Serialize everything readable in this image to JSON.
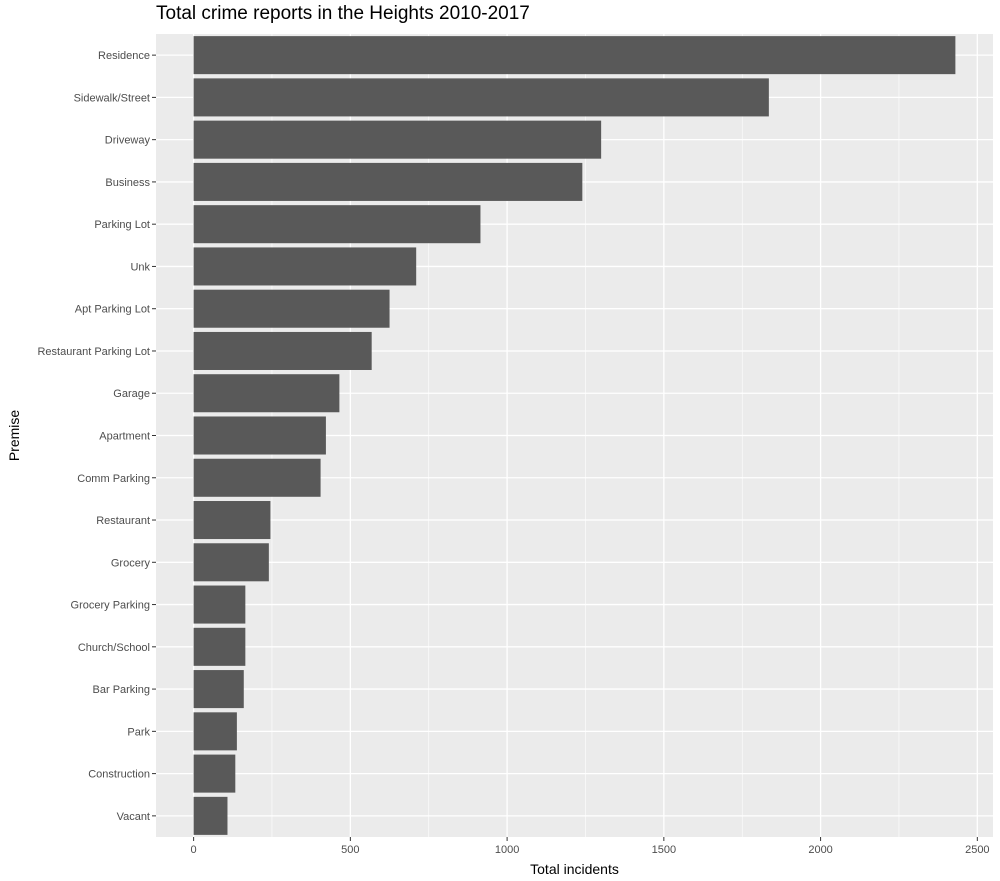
{
  "chart_data": {
    "type": "bar",
    "orientation": "horizontal",
    "title": "Total crime reports in the Heights 2010-2017",
    "xlabel": "Total incidents",
    "ylabel": "Premise",
    "categories": [
      "Residence",
      "Sidewalk/Street",
      "Driveway",
      "Business",
      "Parking Lot",
      "Unk",
      "Apt Parking Lot",
      "Restaurant Parking Lot",
      "Garage",
      "Apartment",
      "Comm Parking",
      "Restaurant",
      "Grocery",
      "Grocery Parking",
      "Church/School",
      "Bar Parking",
      "Park",
      "Construction",
      "Vacant"
    ],
    "values": [
      2430,
      1835,
      1300,
      1240,
      915,
      710,
      625,
      568,
      465,
      422,
      405,
      245,
      240,
      165,
      165,
      160,
      138,
      133,
      108
    ],
    "xlim": [
      -120,
      2550
    ],
    "xticks": [
      "0",
      "500",
      "1000",
      "1500",
      "2000",
      "2500"
    ],
    "grid": true,
    "colors": {
      "bar": "#595959",
      "panel": "#ebebeb",
      "grid": "#ffffff"
    }
  }
}
